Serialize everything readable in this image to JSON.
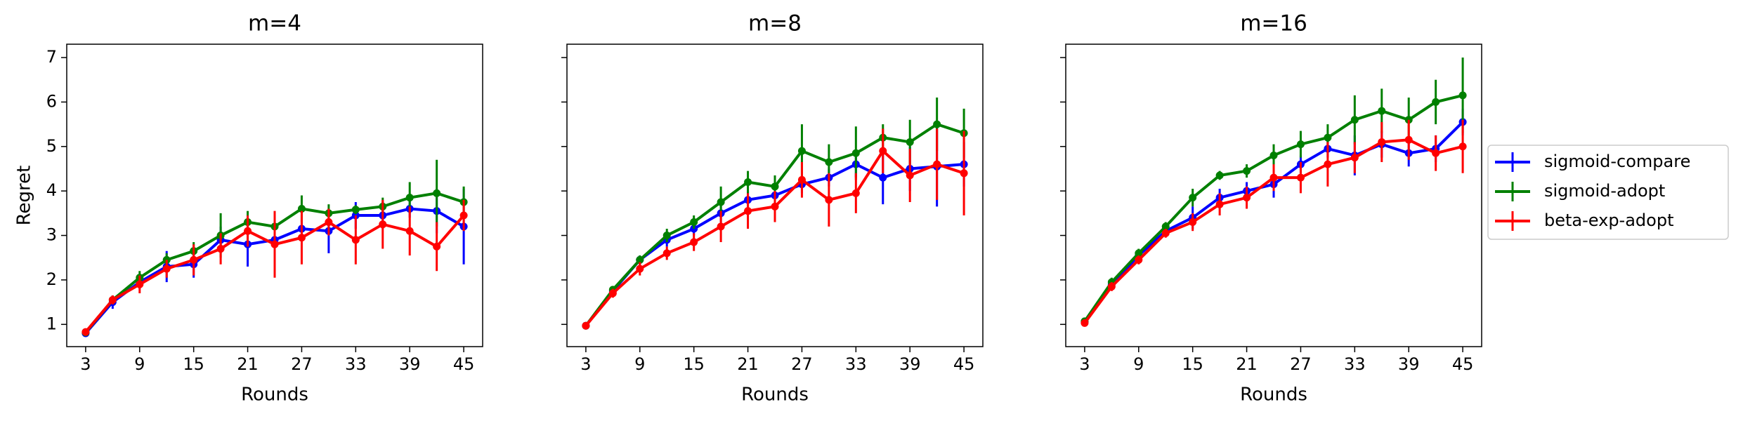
{
  "chart_data": [
    {
      "type": "line",
      "title": "m=4",
      "xlabel": "Rounds",
      "ylabel": "Regret",
      "x": [
        3,
        6,
        9,
        12,
        15,
        18,
        21,
        24,
        27,
        30,
        33,
        36,
        39,
        42,
        45
      ],
      "xlim": [
        0.9,
        47.1
      ],
      "xticks": [
        3,
        9,
        15,
        21,
        27,
        33,
        39,
        45
      ],
      "ylim": [
        0.5,
        7.3
      ],
      "yticks": [
        1,
        2,
        3,
        4,
        5,
        6,
        7
      ],
      "series": [
        {
          "name": "sigmoid-compare",
          "color": "#0000ff",
          "values": [
            0.8,
            1.5,
            1.95,
            2.3,
            2.35,
            2.9,
            2.8,
            2.9,
            3.15,
            3.1,
            3.45,
            3.45,
            3.6,
            3.55,
            3.2
          ],
          "errors": [
            0.05,
            0.15,
            0.15,
            0.35,
            0.3,
            0.3,
            0.5,
            0.35,
            0.2,
            0.5,
            0.3,
            0.3,
            0.2,
            0.5,
            0.85
          ]
        },
        {
          "name": "sigmoid-adopt",
          "color": "#008000",
          "values": [
            0.82,
            1.55,
            2.05,
            2.45,
            2.65,
            3.0,
            3.3,
            3.2,
            3.6,
            3.5,
            3.58,
            3.65,
            3.85,
            3.95,
            3.75
          ],
          "errors": [
            0.05,
            0.1,
            0.15,
            0.15,
            0.2,
            0.5,
            0.25,
            0.25,
            0.3,
            0.2,
            0.1,
            0.2,
            0.35,
            0.75,
            0.35
          ]
        },
        {
          "name": "beta-exp-adopt",
          "color": "#ff0000",
          "values": [
            0.83,
            1.55,
            1.9,
            2.25,
            2.45,
            2.7,
            3.1,
            2.8,
            2.95,
            3.3,
            2.9,
            3.25,
            3.1,
            2.75,
            3.45
          ],
          "errors": [
            0.05,
            0.1,
            0.2,
            0.2,
            0.35,
            0.35,
            0.35,
            0.75,
            0.6,
            0.3,
            0.55,
            0.55,
            0.55,
            0.55,
            0.35
          ]
        }
      ]
    },
    {
      "type": "line",
      "title": "m=8",
      "xlabel": "Rounds",
      "x": [
        3,
        6,
        9,
        12,
        15,
        18,
        21,
        24,
        27,
        30,
        33,
        36,
        39,
        42,
        45
      ],
      "xlim": [
        0.9,
        47.1
      ],
      "xticks": [
        3,
        9,
        15,
        21,
        27,
        33,
        39,
        45
      ],
      "ylim": [
        0.5,
        7.3
      ],
      "yticks": [
        1,
        2,
        3,
        4,
        5,
        6,
        7
      ],
      "series": [
        {
          "name": "sigmoid-compare",
          "color": "#0000ff",
          "values": [
            0.97,
            1.75,
            2.45,
            2.9,
            3.15,
            3.5,
            3.8,
            3.9,
            4.15,
            4.3,
            4.6,
            4.3,
            4.5,
            4.55,
            4.6
          ],
          "errors": [
            0.05,
            0.1,
            0.1,
            0.15,
            0.15,
            0.2,
            0.2,
            0.2,
            0.2,
            0.2,
            0.3,
            0.6,
            0.5,
            0.9,
            0.5
          ]
        },
        {
          "name": "sigmoid-adopt",
          "color": "#008000",
          "values": [
            0.97,
            1.78,
            2.45,
            3.0,
            3.3,
            3.75,
            4.2,
            4.1,
            4.9,
            4.65,
            4.85,
            5.2,
            5.1,
            5.5,
            5.3
          ],
          "errors": [
            0.05,
            0.05,
            0.1,
            0.15,
            0.15,
            0.35,
            0.25,
            0.25,
            0.6,
            0.4,
            0.6,
            0.3,
            0.5,
            0.6,
            0.55
          ]
        },
        {
          "name": "beta-exp-adopt",
          "color": "#ff0000",
          "values": [
            0.97,
            1.7,
            2.25,
            2.6,
            2.85,
            3.2,
            3.55,
            3.65,
            4.25,
            3.8,
            3.95,
            4.9,
            4.35,
            4.6,
            4.4
          ],
          "errors": [
            0.05,
            0.1,
            0.15,
            0.15,
            0.2,
            0.35,
            0.4,
            0.35,
            0.4,
            0.6,
            0.45,
            0.5,
            0.6,
            0.8,
            0.95
          ]
        }
      ]
    },
    {
      "type": "line",
      "title": "m=16",
      "xlabel": "Rounds",
      "legend": "outside-right",
      "x": [
        3,
        6,
        9,
        12,
        15,
        18,
        21,
        24,
        27,
        30,
        33,
        36,
        39,
        42,
        45
      ],
      "xlim": [
        0.9,
        47.1
      ],
      "xticks": [
        3,
        9,
        15,
        21,
        27,
        33,
        39,
        45
      ],
      "ylim": [
        0.5,
        7.3
      ],
      "yticks": [
        1,
        2,
        3,
        4,
        5,
        6,
        7
      ],
      "series": [
        {
          "name": "sigmoid-compare",
          "color": "#0000ff",
          "values": [
            1.05,
            1.9,
            2.55,
            3.1,
            3.4,
            3.85,
            4.0,
            4.15,
            4.6,
            4.95,
            4.8,
            5.05,
            4.85,
            4.95,
            5.55
          ],
          "errors": [
            0.05,
            0.1,
            0.1,
            0.1,
            0.25,
            0.2,
            0.2,
            0.3,
            0.2,
            0.2,
            0.45,
            0.3,
            0.3,
            0.3,
            0.3
          ]
        },
        {
          "name": "sigmoid-adopt",
          "color": "#008000",
          "values": [
            1.07,
            1.95,
            2.6,
            3.2,
            3.85,
            4.35,
            4.45,
            4.8,
            5.05,
            5.2,
            5.6,
            5.8,
            5.6,
            6.0,
            6.15
          ],
          "errors": [
            0.05,
            0.1,
            0.1,
            0.1,
            0.2,
            0.1,
            0.15,
            0.25,
            0.3,
            0.3,
            0.55,
            0.5,
            0.5,
            0.5,
            0.85
          ]
        },
        {
          "name": "beta-exp-adopt",
          "color": "#ff0000",
          "values": [
            1.03,
            1.85,
            2.45,
            3.05,
            3.3,
            3.7,
            3.85,
            4.3,
            4.3,
            4.6,
            4.75,
            5.1,
            5.15,
            4.85,
            5.0
          ],
          "errors": [
            0.05,
            0.1,
            0.1,
            0.1,
            0.2,
            0.25,
            0.25,
            0.3,
            0.35,
            0.5,
            0.35,
            0.45,
            0.45,
            0.4,
            0.6
          ]
        }
      ]
    }
  ]
}
